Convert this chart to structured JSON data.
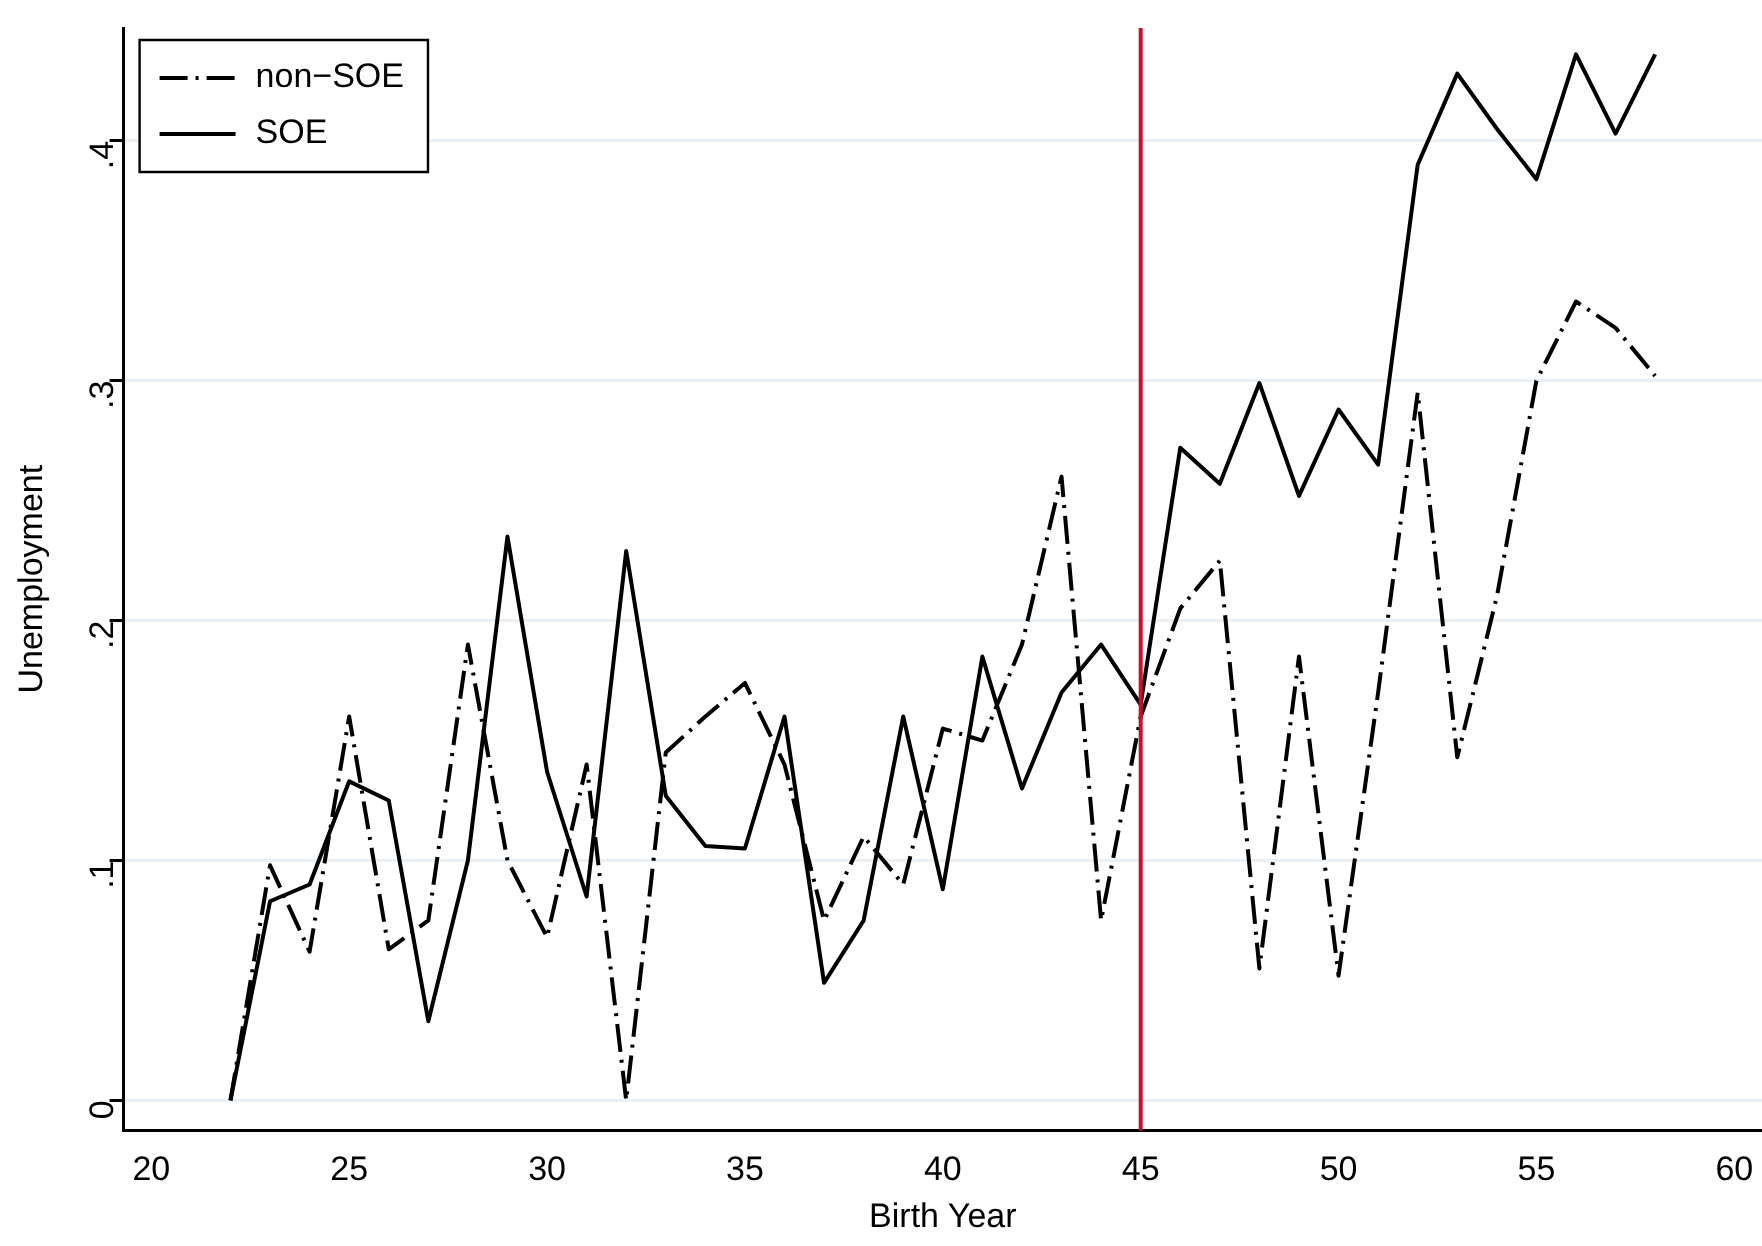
{
  "chart_data": {
    "type": "line",
    "xlabel": "Birth Year",
    "ylabel": "Unemployment",
    "x": [
      22,
      23,
      24,
      25,
      26,
      27,
      28,
      29,
      30,
      31,
      32,
      33,
      34,
      35,
      36,
      37,
      38,
      39,
      40,
      41,
      42,
      43,
      44,
      45,
      46,
      47,
      48,
      49,
      50,
      51,
      52,
      53,
      54,
      55,
      56,
      57,
      58
    ],
    "series": [
      {
        "name": "non−SOE",
        "color": "#000000",
        "line_style": "dashed",
        "values": [
          0,
          0.098,
          0.062,
          0.16,
          0.063,
          0.075,
          0.19,
          0.1,
          0.068,
          0.14,
          0,
          0.145,
          0.16,
          0.174,
          0.14,
          0.075,
          0.11,
          0.09,
          0.155,
          0.15,
          0.19,
          0.26,
          0.075,
          0.16,
          0.205,
          0.225,
          0.055,
          0.185,
          0.052,
          0.17,
          0.295,
          0.143,
          0.21,
          0.3,
          0.333,
          0.322,
          0.302
        ]
      },
      {
        "name": "SOE",
        "color": "#000000",
        "line_style": "solid",
        "values": [
          0,
          0.083,
          0.09,
          0.133,
          0.125,
          0.033,
          0.1,
          0.235,
          0.137,
          0.085,
          0.229,
          0.127,
          0.106,
          0.105,
          0.16,
          0.049,
          0.075,
          0.16,
          0.088,
          0.185,
          0.13,
          0.17,
          0.19,
          0.165,
          0.272,
          0.257,
          0.299,
          0.252,
          0.288,
          0.265,
          0.39,
          0.428,
          0.405,
          0.384,
          0.436,
          0.403,
          0.436
        ]
      }
    ],
    "xlim": [
      19.3,
      60.7
    ],
    "xticks": [
      20,
      25,
      30,
      35,
      40,
      45,
      50,
      55,
      60
    ],
    "ylim": [
      -0.0125,
      0.447
    ],
    "yticks": [
      {
        "value": 0,
        "label": "0"
      },
      {
        "value": 0.1,
        "label": ".1"
      },
      {
        "value": 0.2,
        "label": ".2"
      },
      {
        "value": 0.3,
        "label": ".3"
      },
      {
        "value": 0.4,
        "label": ".4"
      }
    ],
    "ref_lines": [
      {
        "axis": "x",
        "value": 45,
        "color": "#c8102e"
      }
    ],
    "grid": "y",
    "legend": "top left",
    "marker": "none"
  }
}
